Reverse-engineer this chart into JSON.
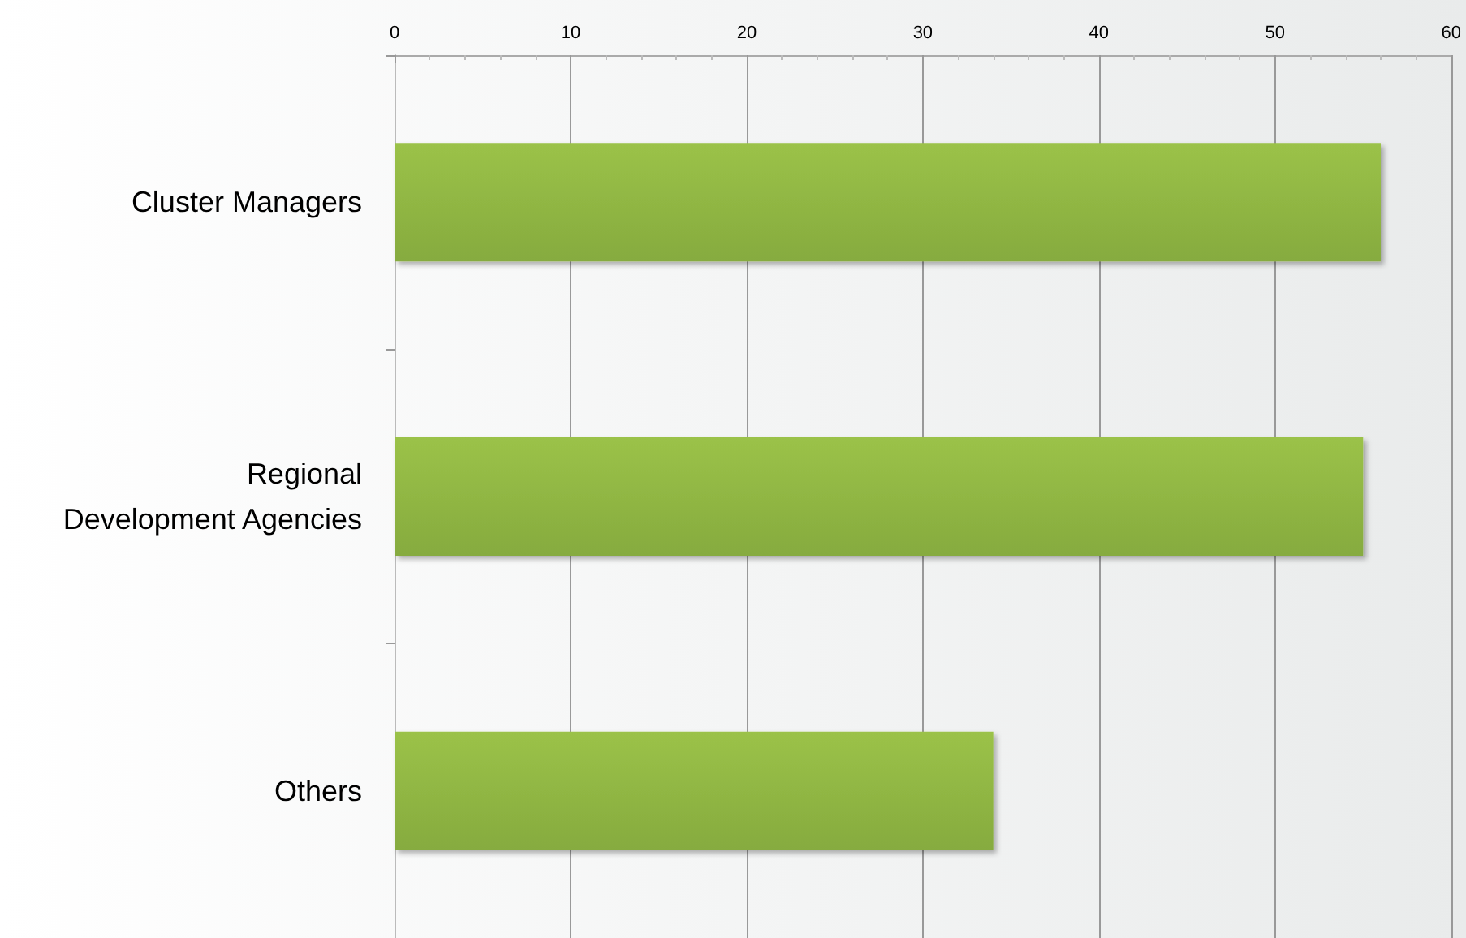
{
  "chart_data": {
    "type": "bar",
    "orientation": "horizontal",
    "categories": [
      "Cluster Managers",
      "Regional\nDevelopment Agencies",
      "Others"
    ],
    "values": [
      56,
      55,
      34
    ],
    "color": "#86ab3f",
    "xlim": [
      0,
      60
    ],
    "xticks": [
      0,
      10,
      20,
      30,
      40,
      50,
      60
    ],
    "grid": "x"
  }
}
